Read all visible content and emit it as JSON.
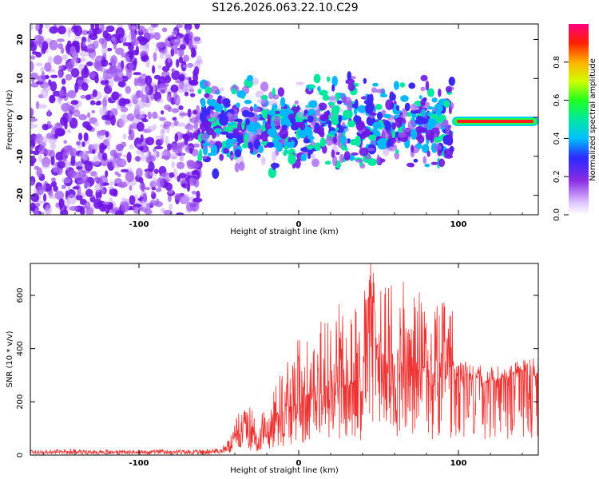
{
  "title": "S126.2026.063.22.10.C29",
  "colors": {
    "snr_line": "#ee3333",
    "spectrogram_base": "#8a2be2"
  },
  "chart_data": [
    {
      "type": "heatmap",
      "name": "spectrogram",
      "xlabel": "Height of straight line (km)",
      "ylabel": "Frequency (Hz)",
      "xlim": [
        -168,
        150
      ],
      "ylim": [
        -25,
        24
      ],
      "x_ticks": [
        "-100",
        "0",
        "100"
      ],
      "y_ticks": [
        "-20",
        "-10",
        "0",
        "10",
        "20"
      ],
      "colorbar": {
        "label": "Normalized spectral amplitude",
        "range": [
          0,
          1
        ],
        "ticks": [
          "0.0",
          "0.2",
          "0.4",
          "0.6",
          "0.8"
        ],
        "colormap": "rainbow"
      },
      "features": [
        {
          "x_range": [
            -168,
            -62
          ],
          "freq_range": [
            -25,
            24
          ],
          "amplitude": 0.15,
          "description": "diffuse"
        },
        {
          "x_range": [
            -62,
            96
          ],
          "freq_range": [
            -12,
            8
          ],
          "amplitude": 0.25
        },
        {
          "x_range": [
            96,
            150
          ],
          "freq_center": -1,
          "amplitude": 0.9
        }
      ]
    },
    {
      "type": "line",
      "name": "snr",
      "xlabel": "Height of straight line (km)",
      "ylabel": "SNR (10 * v/v)",
      "xlim": [
        -168,
        150
      ],
      "ylim": [
        0,
        720
      ],
      "x_ticks": [
        "-100",
        "0",
        "100"
      ],
      "y_ticks": [
        "0",
        "200",
        "400",
        "600"
      ],
      "series": [
        {
          "x": [
            -168,
            -150,
            -100,
            -60,
            -48,
            -42,
            -38,
            -35,
            -30,
            -25,
            -20,
            -15,
            -10,
            -5,
            0,
            10,
            20,
            30,
            40,
            45,
            50,
            60,
            70,
            80,
            90,
            97,
            100,
            110,
            120,
            130,
            140,
            150
          ],
          "y": [
            10,
            12,
            12,
            12,
            15,
            40,
            90,
            120,
            80,
            60,
            100,
            140,
            160,
            180,
            190,
            240,
            250,
            260,
            280,
            700,
            320,
            330,
            320,
            300,
            280,
            270,
            300,
            280,
            270,
            290,
            310,
            290
          ],
          "peak_y": [
            20,
            22,
            20,
            20,
            30,
            80,
            160,
            190,
            180,
            150,
            180,
            250,
            420,
            330,
            450,
            470,
            560,
            580,
            650,
            720,
            640,
            680,
            630,
            600,
            580,
            550,
            360,
            340,
            330,
            340,
            360,
            380
          ]
        }
      ]
    }
  ]
}
